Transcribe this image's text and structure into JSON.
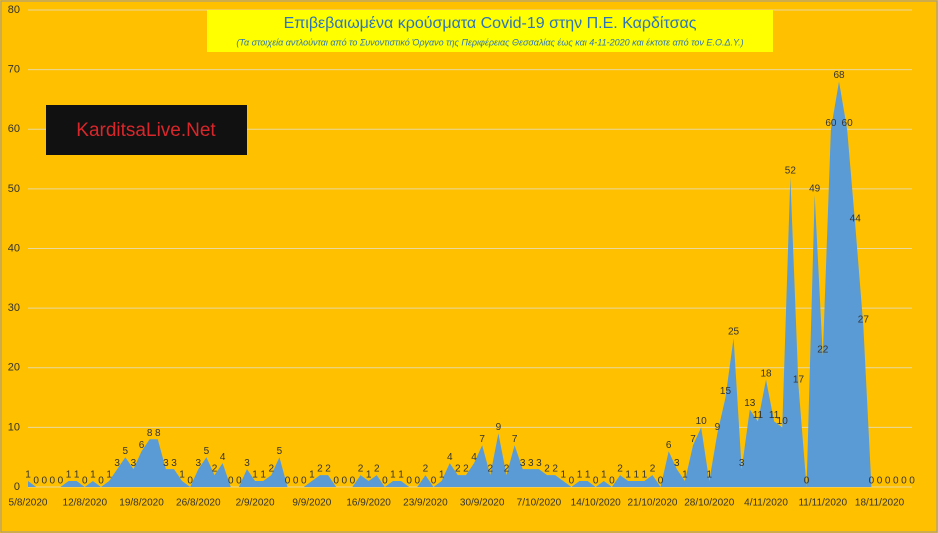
{
  "chart_data": {
    "type": "area",
    "title": "Επιβεβαιωμένα κρούσματα Covid-19 στην Π.Ε. Καρδίτσας",
    "subtitle": "(Τα στοιχεία αντλούνται από το Συνοντιστικό Όργανο της Περιφέρειας Θεσσαλίας έως και 4-11-2020 και έκτοτε από τον Ε.Ο.Δ.Υ.)",
    "logo_text": "KarditsaLive.Net",
    "categories": [
      "5/8/2020",
      null,
      null,
      null,
      null,
      null,
      null,
      "12/8/2020",
      null,
      null,
      null,
      null,
      null,
      null,
      "19/8/2020",
      null,
      null,
      null,
      null,
      null,
      null,
      "26/8/2020",
      null,
      null,
      null,
      null,
      null,
      null,
      "2/9/2020",
      null,
      null,
      null,
      null,
      null,
      null,
      "9/9/2020",
      null,
      null,
      null,
      null,
      null,
      null,
      "16/9/2020",
      null,
      null,
      null,
      null,
      null,
      null,
      "23/9/2020",
      null,
      null,
      null,
      null,
      null,
      null,
      "30/9/2020",
      null,
      null,
      null,
      null,
      null,
      null,
      "7/10/2020",
      null,
      null,
      null,
      null,
      null,
      null,
      "14/10/2020",
      null,
      null,
      null,
      null,
      null,
      null,
      "21/10/2020",
      null,
      null,
      null,
      null,
      null,
      null,
      "28/10/2020",
      null,
      null,
      null,
      null,
      null,
      null,
      "4/11/2020",
      null,
      null,
      null,
      null,
      null,
      null,
      "11/11/2020",
      null,
      null,
      null,
      null,
      null,
      null,
      "18/11/2020",
      null,
      null,
      null,
      null
    ],
    "values": [
      1,
      0,
      0,
      0,
      0,
      1,
      1,
      0,
      1,
      0,
      1,
      3,
      5,
      3,
      6,
      8,
      8,
      3,
      3,
      1,
      0,
      3,
      5,
      2,
      4,
      0,
      0,
      3,
      1,
      1,
      2,
      5,
      0,
      0,
      0,
      1,
      2,
      2,
      0,
      0,
      0,
      2,
      1,
      2,
      0,
      1,
      1,
      0,
      0,
      2,
      0,
      1,
      4,
      2,
      2,
      4,
      7,
      2,
      9,
      2,
      7,
      3,
      3,
      3,
      2,
      2,
      1,
      0,
      1,
      1,
      0,
      1,
      0,
      2,
      1,
      1,
      1,
      2,
      0,
      6,
      3,
      1,
      7,
      10,
      1,
      9,
      15,
      25,
      3,
      13,
      11,
      18,
      11,
      10,
      52,
      17,
      0,
      49,
      22,
      60,
      68,
      60,
      44,
      27,
      0,
      0,
      0,
      0,
      0,
      0
    ],
    "color": "#5b9bd5",
    "ylim": [
      0,
      80
    ],
    "yticks": [
      0,
      10,
      20,
      30,
      40,
      50,
      60,
      70,
      80
    ],
    "grid": true
  }
}
